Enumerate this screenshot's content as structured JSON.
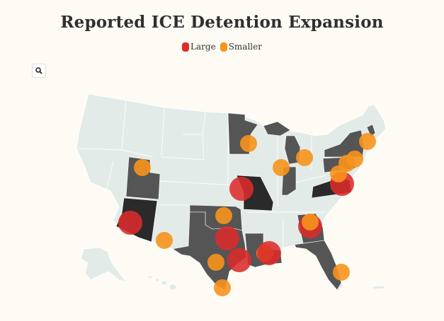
{
  "title": "Reported ICE Detention Expansion",
  "legend": {
    "items": [
      {
        "label": "Large",
        "color": "#dc2b2b"
      },
      {
        "label": "Smaller",
        "color": "#f7941d"
      }
    ]
  },
  "search": {
    "icon": "search-icon"
  },
  "map": {
    "land_color": "#e2ebe8",
    "highlight_color": "#555555",
    "dark_color": "#2a2a2a",
    "highlighted_states": [
      "Utah",
      "Arizona",
      "Texas",
      "Oklahoma",
      "Louisiana",
      "Minnesota",
      "Missouri",
      "Indiana",
      "Michigan",
      "Georgia",
      "Florida",
      "Virginia",
      "Pennsylvania",
      "New York",
      "Maine"
    ],
    "markers": [
      {
        "place": "Utah",
        "size": "Smaller"
      },
      {
        "place": "Arizona",
        "size": "Large"
      },
      {
        "place": "Southern Arizona / New Mexico border",
        "size": "Smaller"
      },
      {
        "place": "Oklahoma",
        "size": "Smaller"
      },
      {
        "place": "Central Texas",
        "size": "Large"
      },
      {
        "place": "East Texas",
        "size": "Large"
      },
      {
        "place": "West Texas",
        "size": "Smaller"
      },
      {
        "place": "South Texas",
        "size": "Smaller"
      },
      {
        "place": "Louisiana",
        "size": "Smaller"
      },
      {
        "place": "Louisiana / Mississippi",
        "size": "Large"
      },
      {
        "place": "Missouri",
        "size": "Large"
      },
      {
        "place": "Minnesota",
        "size": "Smaller"
      },
      {
        "place": "Chicago, Illinois",
        "size": "Smaller"
      },
      {
        "place": "Michigan",
        "size": "Smaller"
      },
      {
        "place": "Georgia",
        "size": "Large"
      },
      {
        "place": "Georgia",
        "size": "Smaller"
      },
      {
        "place": "Florida",
        "size": "Smaller"
      },
      {
        "place": "Virginia",
        "size": "Large"
      },
      {
        "place": "Pennsylvania",
        "size": "Smaller"
      },
      {
        "place": "New Jersey",
        "size": "Smaller"
      },
      {
        "place": "New York",
        "size": "Smaller"
      },
      {
        "place": "Massachusetts",
        "size": "Smaller"
      }
    ]
  }
}
